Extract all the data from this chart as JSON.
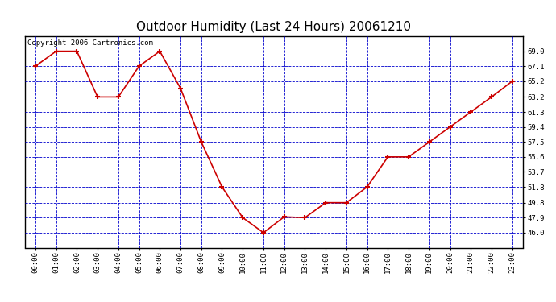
{
  "title": "Outdoor Humidity (Last 24 Hours) 20061210",
  "copyright_text": "Copyright 2006 Cartronics.com",
  "x_labels": [
    "00:00",
    "01:00",
    "02:00",
    "03:00",
    "04:00",
    "05:00",
    "06:00",
    "07:00",
    "08:00",
    "09:00",
    "10:00",
    "11:00",
    "12:00",
    "13:00",
    "14:00",
    "15:00",
    "16:00",
    "17:00",
    "18:00",
    "19:00",
    "20:00",
    "21:00",
    "22:00",
    "23:00"
  ],
  "y_values": [
    67.1,
    69.0,
    69.0,
    63.2,
    63.2,
    67.1,
    69.0,
    64.3,
    57.5,
    51.8,
    47.9,
    46.0,
    48.0,
    47.9,
    49.8,
    49.8,
    51.8,
    55.6,
    55.6,
    57.5,
    59.4,
    61.3,
    63.2,
    65.2
  ],
  "ylim_min": 44.1,
  "ylim_max": 70.9,
  "yticks": [
    46.0,
    47.9,
    49.8,
    51.8,
    53.7,
    55.6,
    57.5,
    59.4,
    61.3,
    63.2,
    65.2,
    67.1,
    69.0
  ],
  "line_color": "#cc0000",
  "marker_color": "#cc0000",
  "plot_bg_color": "#ffffff",
  "outer_bg_color": "#ffffff",
  "grid_color": "#0000cc",
  "title_fontsize": 11,
  "copyright_fontsize": 6.5
}
